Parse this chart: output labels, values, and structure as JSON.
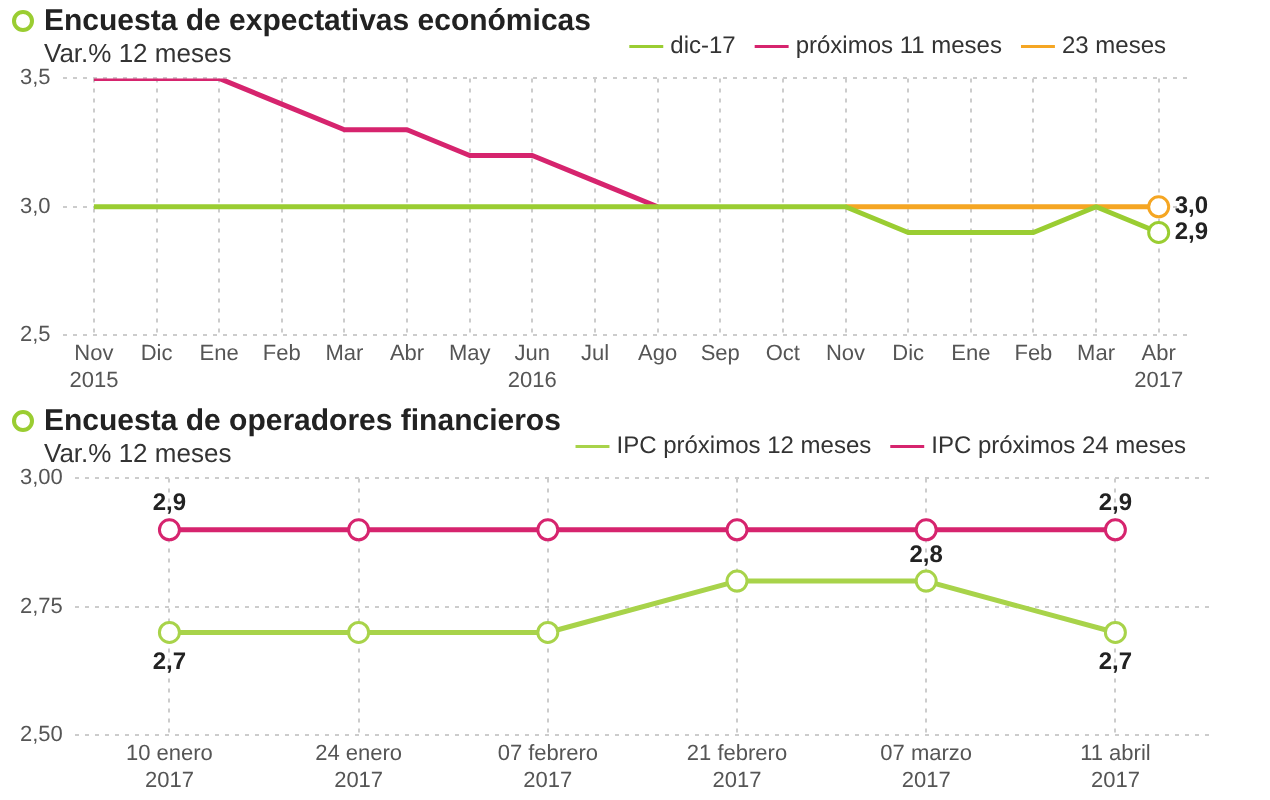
{
  "chart_data": [
    {
      "type": "line",
      "title": "Encuesta de expectativas económicas",
      "subtitle": "Var.% 12 meses",
      "categories": [
        "Nov\n2015",
        "Dic",
        "Ene",
        "Feb",
        "Mar",
        "Abr",
        "May",
        "Jun\n2016",
        "Jul",
        "Ago",
        "Sep",
        "Oct",
        "Nov",
        "Dic",
        "Ene",
        "Feb",
        "Mar",
        "Abr\n2017"
      ],
      "series": [
        {
          "name": "dic-17",
          "color": "#9acd32",
          "values": [
            3.0,
            3.0,
            3.0,
            3.0,
            3.0,
            3.0,
            3.0,
            3.0,
            3.0,
            3.0,
            3.0,
            3.0,
            3.0,
            2.9,
            2.9,
            2.9,
            3.0,
            2.9
          ],
          "value_labels": [
            null,
            null,
            null,
            null,
            null,
            null,
            null,
            null,
            null,
            null,
            null,
            null,
            null,
            null,
            null,
            null,
            null,
            "2,9"
          ]
        },
        {
          "name": "próximos 11 meses",
          "color": "#d6246e",
          "values": [
            3.5,
            3.5,
            3.5,
            3.4,
            3.3,
            3.3,
            3.2,
            3.2,
            3.1,
            3.0,
            null,
            null,
            null,
            null,
            null,
            null,
            null,
            null
          ]
        },
        {
          "name": "23 meses",
          "color": "#f5a623",
          "values": [
            null,
            null,
            null,
            null,
            null,
            null,
            null,
            null,
            null,
            null,
            null,
            null,
            3.0,
            3.0,
            3.0,
            3.0,
            3.0,
            3.0
          ],
          "value_labels": [
            null,
            null,
            null,
            null,
            null,
            null,
            null,
            null,
            null,
            null,
            null,
            null,
            null,
            null,
            null,
            null,
            null,
            "3,0"
          ]
        }
      ],
      "ylim": [
        2.5,
        3.5
      ],
      "yticks": [
        {
          "value": 2.5,
          "label": "2,5"
        },
        {
          "value": 3.0,
          "label": "3,0"
        },
        {
          "value": 3.5,
          "label": "3,5"
        }
      ],
      "grid": true,
      "legend": "top right",
      "marker": "none"
    },
    {
      "type": "line",
      "title": "Encuesta de operadores financieros",
      "subtitle": "Var.% 12 meses",
      "categories": [
        "10 enero\n2017",
        "24 enero\n2017",
        "07 febrero\n2017",
        "21 febrero\n2017",
        "07 marzo\n2017",
        "11 abril\n2017"
      ],
      "series": [
        {
          "name": "IPC próximos 12 meses",
          "color": "#a8d34a",
          "values": [
            2.7,
            2.7,
            2.7,
            2.8,
            2.8,
            2.7
          ],
          "value_labels": [
            "2,7",
            null,
            null,
            null,
            "2,8",
            "2,7"
          ]
        },
        {
          "name": "IPC próximos 24 meses",
          "color": "#d6246e",
          "values": [
            2.9,
            2.9,
            2.9,
            2.9,
            2.9,
            2.9
          ],
          "value_labels": [
            "2,9",
            null,
            null,
            null,
            null,
            "2,9"
          ]
        }
      ],
      "ylim": [
        2.5,
        3.0
      ],
      "yticks": [
        {
          "value": 2.5,
          "label": "2,50"
        },
        {
          "value": 2.75,
          "label": "2,75"
        },
        {
          "value": 3.0,
          "label": "3,00"
        }
      ],
      "grid": true,
      "legend": "top right",
      "marker": "circle"
    }
  ]
}
